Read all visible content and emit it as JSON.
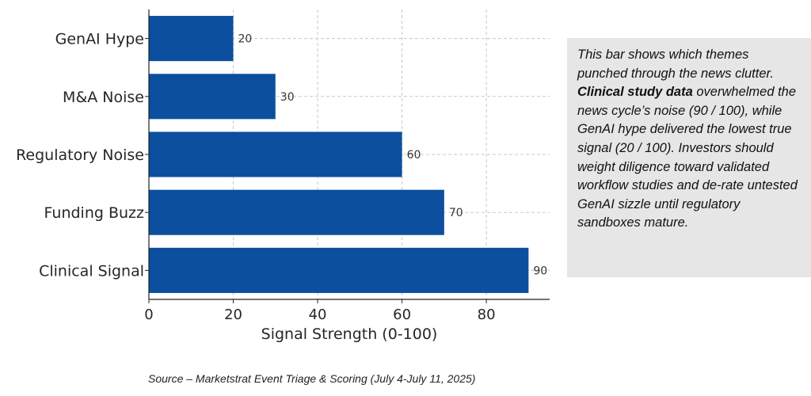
{
  "chart_data": {
    "type": "bar",
    "orientation": "horizontal",
    "categories": [
      "GenAI Hype",
      "M&A Noise",
      "Regulatory Noise",
      "Funding Buzz",
      "Clinical Signal"
    ],
    "values": [
      20,
      30,
      60,
      70,
      90
    ],
    "data_labels": [
      "20",
      "30",
      "60",
      "70",
      "90"
    ],
    "xlabel": "Signal Strength (0-100)",
    "ylabel": "",
    "xlim": [
      0,
      95
    ],
    "xticks": [
      0,
      20,
      40,
      60,
      80
    ],
    "xtick_labels": [
      "0",
      "20",
      "40",
      "60",
      "80"
    ],
    "grid": true,
    "bar_color": "#0b4f9e"
  },
  "annotation": {
    "lead": "This bar shows which themes punched through the news clutter. ",
    "bold": "Clinical study data",
    "rest": " overwhelmed the news cycle’s noise (90 / 100), while GenAI hype delivered the lowest true signal (20 / 100). Investors should weight diligence toward validated workflow studies and de-rate untested GenAI sizzle until regulatory sandboxes mature."
  },
  "source": "Source – Marketstrat Event Triage & Scoring (July 4-July 11, 2025)"
}
